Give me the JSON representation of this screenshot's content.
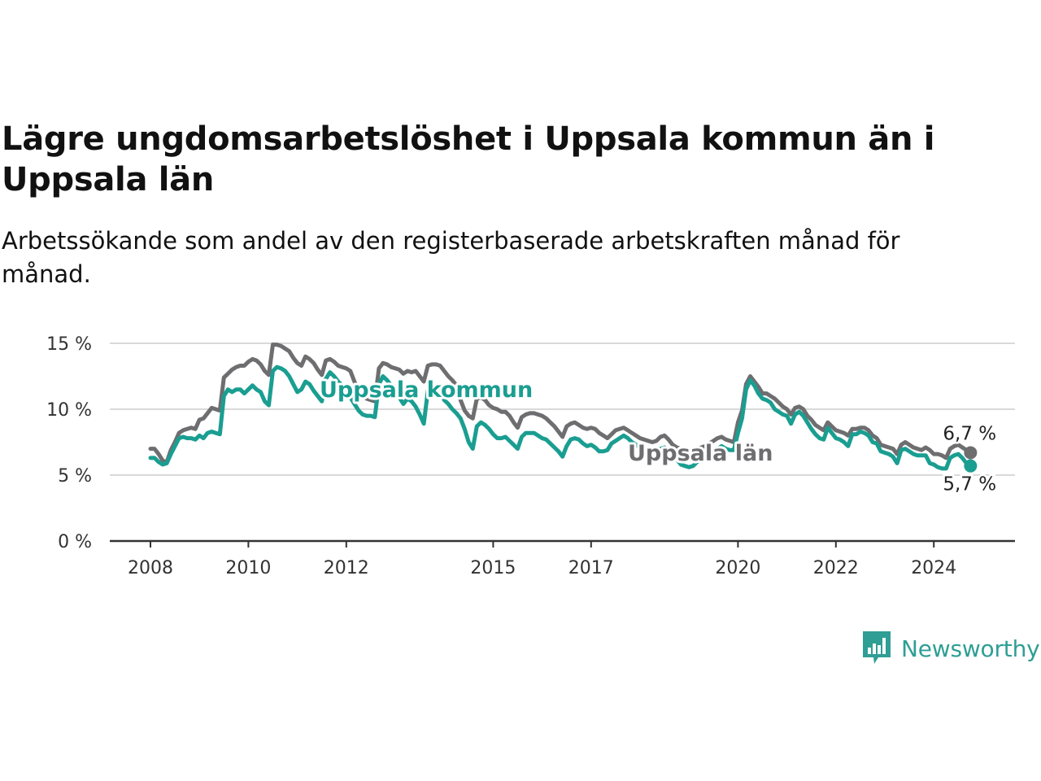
{
  "title": "Lägre ungdomsarbetslöshet i Uppsala kommun än i Uppsala län",
  "subtitle": "Arbetssökande som andel av den registerbaserade arbetskraften månad för månad.",
  "brand": {
    "name": "Newsworthy",
    "icon": "newsworthy-logo-icon",
    "color": "#2f9e94"
  },
  "chart_data": {
    "type": "line",
    "x_start": "2008-01",
    "x_frequency": "monthly",
    "x_tick_labels": [
      "2008",
      "2010",
      "2012",
      "2015",
      "2017",
      "2020",
      "2022",
      "2024"
    ],
    "y_tick_labels": [
      "0 %",
      "5 %",
      "10 %",
      "15 %"
    ],
    "ylim": [
      0,
      15
    ],
    "grid": true,
    "series": [
      {
        "name": "Uppsala län",
        "color": "#6e6d70",
        "end_label": "6,7 %",
        "values": [
          7.0,
          7.0,
          6.6,
          6.1,
          6.0,
          6.9,
          7.5,
          8.2,
          8.4,
          8.5,
          8.6,
          8.5,
          9.2,
          9.3,
          9.7,
          10.1,
          10.0,
          9.9,
          12.4,
          12.7,
          13.0,
          13.2,
          13.3,
          13.3,
          13.6,
          13.8,
          13.7,
          13.4,
          12.9,
          12.6,
          14.9,
          14.9,
          14.8,
          14.6,
          14.4,
          13.9,
          13.5,
          13.3,
          14.0,
          13.8,
          13.5,
          13.0,
          12.6,
          13.7,
          13.8,
          13.6,
          13.3,
          13.2,
          13.1,
          12.9,
          12.1,
          11.4,
          11.0,
          10.8,
          10.7,
          10.6,
          13.1,
          13.5,
          13.4,
          13.2,
          13.1,
          13.0,
          12.7,
          12.9,
          12.8,
          12.9,
          12.5,
          12.1,
          13.3,
          13.4,
          13.4,
          13.3,
          12.9,
          12.5,
          12.2,
          11.8,
          10.7,
          9.9,
          9.5,
          9.3,
          10.8,
          10.9,
          10.7,
          10.3,
          10.1,
          10.0,
          9.8,
          9.8,
          9.5,
          9.0,
          8.6,
          9.4,
          9.6,
          9.7,
          9.7,
          9.6,
          9.5,
          9.3,
          9.0,
          8.7,
          8.3,
          7.9,
          8.7,
          8.9,
          9.0,
          8.8,
          8.6,
          8.5,
          8.6,
          8.5,
          8.2,
          8.0,
          7.8,
          8.1,
          8.4,
          8.5,
          8.6,
          8.4,
          8.2,
          8.0,
          7.8,
          7.7,
          7.6,
          7.5,
          7.6,
          7.9,
          8.0,
          7.7,
          7.3,
          7.1,
          7.0,
          7.0,
          6.8,
          6.9,
          7.0,
          7.1,
          7.2,
          7.4,
          7.6,
          7.8,
          7.9,
          7.7,
          7.6,
          7.5,
          9.0,
          9.9,
          11.9,
          12.5,
          12.1,
          11.7,
          11.2,
          11.2,
          11.0,
          10.8,
          10.5,
          10.2,
          10.0,
          9.6,
          10.1,
          10.2,
          10.0,
          9.5,
          9.2,
          8.8,
          8.6,
          8.4,
          9.0,
          8.7,
          8.4,
          8.3,
          8.2,
          8.0,
          8.5,
          8.5,
          8.6,
          8.6,
          8.4,
          8.0,
          7.8,
          7.3,
          7.2,
          7.1,
          7.0,
          6.6,
          7.3,
          7.5,
          7.3,
          7.1,
          7.0,
          6.9,
          7.1,
          6.9,
          6.6,
          6.6,
          6.5,
          6.3,
          7.0,
          7.2,
          7.3,
          7.1,
          6.9,
          6.7
        ]
      },
      {
        "name": "Uppsala kommun",
        "color": "#1a9e91",
        "end_label": "5,7 %",
        "values": [
          6.3,
          6.3,
          6.0,
          5.8,
          5.9,
          6.6,
          7.2,
          7.8,
          7.9,
          7.8,
          7.8,
          7.7,
          8.0,
          7.8,
          8.2,
          8.3,
          8.2,
          8.1,
          11.0,
          11.5,
          11.3,
          11.5,
          11.5,
          11.2,
          11.5,
          11.8,
          11.5,
          11.3,
          10.6,
          10.3,
          12.9,
          13.2,
          13.1,
          12.9,
          12.5,
          11.9,
          11.3,
          11.5,
          12.1,
          11.9,
          11.4,
          11.0,
          10.6,
          12.3,
          12.8,
          12.5,
          12.1,
          11.8,
          11.4,
          10.9,
          10.4,
          9.9,
          9.6,
          9.5,
          9.5,
          9.4,
          11.9,
          12.5,
          12.2,
          11.8,
          11.4,
          10.9,
          10.4,
          10.8,
          10.6,
          10.2,
          9.6,
          8.9,
          11.4,
          11.8,
          11.6,
          11.3,
          10.7,
          10.4,
          10.0,
          9.7,
          9.3,
          8.5,
          7.5,
          7.0,
          8.7,
          9.0,
          8.8,
          8.5,
          8.1,
          7.8,
          7.8,
          7.9,
          7.6,
          7.3,
          7.0,
          7.9,
          8.2,
          8.2,
          8.2,
          8.0,
          7.8,
          7.7,
          7.4,
          7.1,
          6.8,
          6.4,
          7.2,
          7.7,
          7.8,
          7.7,
          7.4,
          7.2,
          7.3,
          7.1,
          6.8,
          6.8,
          6.9,
          7.4,
          7.6,
          7.8,
          8.0,
          7.8,
          7.5,
          7.3,
          7.1,
          7.0,
          7.0,
          6.9,
          6.8,
          7.0,
          7.1,
          6.9,
          6.6,
          6.2,
          5.8,
          5.7,
          5.6,
          5.7,
          6.0,
          6.3,
          6.5,
          6.7,
          6.9,
          7.0,
          7.2,
          7.0,
          6.9,
          6.9,
          8.2,
          9.3,
          11.5,
          12.2,
          11.8,
          11.2,
          10.8,
          10.7,
          10.5,
          10.0,
          9.8,
          9.6,
          9.5,
          8.9,
          9.6,
          9.8,
          9.5,
          9.0,
          8.5,
          8.1,
          7.8,
          7.7,
          8.6,
          8.2,
          7.8,
          7.7,
          7.5,
          7.2,
          8.1,
          8.1,
          8.3,
          8.2,
          8.0,
          7.5,
          7.4,
          6.8,
          6.7,
          6.6,
          6.4,
          5.9,
          6.9,
          7.0,
          6.8,
          6.6,
          6.5,
          6.5,
          6.5,
          5.9,
          5.8,
          5.6,
          5.5,
          5.5,
          6.3,
          6.5,
          6.6,
          6.3,
          5.9,
          5.7
        ]
      }
    ]
  }
}
